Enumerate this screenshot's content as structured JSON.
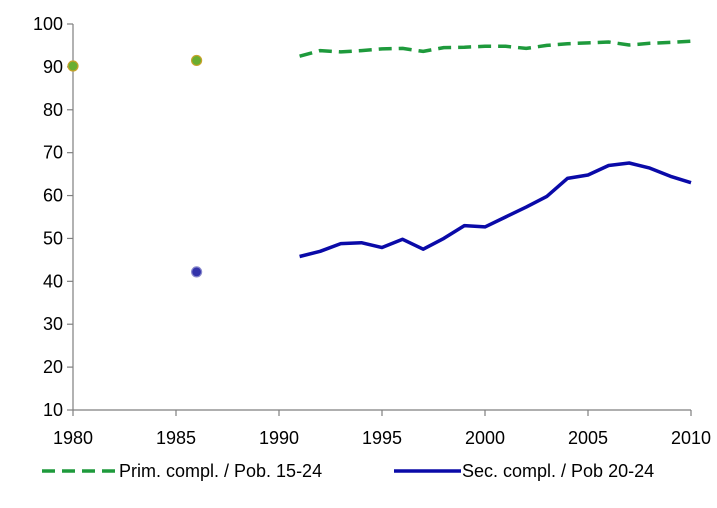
{
  "chart_data": {
    "type": "line",
    "title": "",
    "xlabel": "",
    "ylabel": "",
    "xlim": [
      1980,
      2010
    ],
    "ylim": [
      10,
      100
    ],
    "x_ticks": [
      1980,
      1985,
      1990,
      1995,
      2000,
      2005,
      2010
    ],
    "y_ticks": [
      10,
      20,
      30,
      40,
      50,
      60,
      70,
      80,
      90,
      100
    ],
    "grid": false,
    "legend_position": "bottom",
    "series": [
      {
        "name": "Prim. compl. / Pob. 15-24",
        "color": "#1e9a3c",
        "style": "dashed",
        "marker_color": "#6aae30",
        "marker_edge": "#c8a22a",
        "points": [
          {
            "x": 1980,
            "y": 90.2
          },
          {
            "x": 1986,
            "y": 91.5
          }
        ],
        "line": [
          {
            "x": 1991,
            "y": 92.5
          },
          {
            "x": 1992,
            "y": 93.8
          },
          {
            "x": 1993,
            "y": 93.5
          },
          {
            "x": 1994,
            "y": 93.8
          },
          {
            "x": 1995,
            "y": 94.2
          },
          {
            "x": 1996,
            "y": 94.3
          },
          {
            "x": 1997,
            "y": 93.6
          },
          {
            "x": 1998,
            "y": 94.5
          },
          {
            "x": 1999,
            "y": 94.6
          },
          {
            "x": 2000,
            "y": 94.8
          },
          {
            "x": 2001,
            "y": 94.8
          },
          {
            "x": 2002,
            "y": 94.3
          },
          {
            "x": 2003,
            "y": 95.0
          },
          {
            "x": 2004,
            "y": 95.4
          },
          {
            "x": 2005,
            "y": 95.6
          },
          {
            "x": 2006,
            "y": 95.8
          },
          {
            "x": 2007,
            "y": 95.1
          },
          {
            "x": 2008,
            "y": 95.5
          },
          {
            "x": 2009,
            "y": 95.7
          },
          {
            "x": 2010,
            "y": 96.0
          }
        ]
      },
      {
        "name": "Sec. compl. / Pob 20-24",
        "color": "#0a0aa8",
        "style": "solid",
        "marker_color": "#3333aa",
        "marker_edge": "#8888cc",
        "points": [
          {
            "x": 1986,
            "y": 42.2
          }
        ],
        "line": [
          {
            "x": 1991,
            "y": 45.8
          },
          {
            "x": 1992,
            "y": 47.0
          },
          {
            "x": 1993,
            "y": 48.8
          },
          {
            "x": 1994,
            "y": 49.0
          },
          {
            "x": 1995,
            "y": 47.9
          },
          {
            "x": 1996,
            "y": 49.8
          },
          {
            "x": 1997,
            "y": 47.5
          },
          {
            "x": 1998,
            "y": 50.0
          },
          {
            "x": 1999,
            "y": 53.0
          },
          {
            "x": 2000,
            "y": 52.7
          },
          {
            "x": 2001,
            "y": 55.0
          },
          {
            "x": 2002,
            "y": 57.3
          },
          {
            "x": 2003,
            "y": 59.8
          },
          {
            "x": 2004,
            "y": 64.0
          },
          {
            "x": 2005,
            "y": 64.8
          },
          {
            "x": 2006,
            "y": 67.0
          },
          {
            "x": 2007,
            "y": 67.6
          },
          {
            "x": 2008,
            "y": 66.4
          },
          {
            "x": 2009,
            "y": 64.5
          },
          {
            "x": 2010,
            "y": 63.0
          }
        ]
      }
    ]
  },
  "colors": {
    "axis": "#7f7f7f",
    "text": "#000000"
  }
}
